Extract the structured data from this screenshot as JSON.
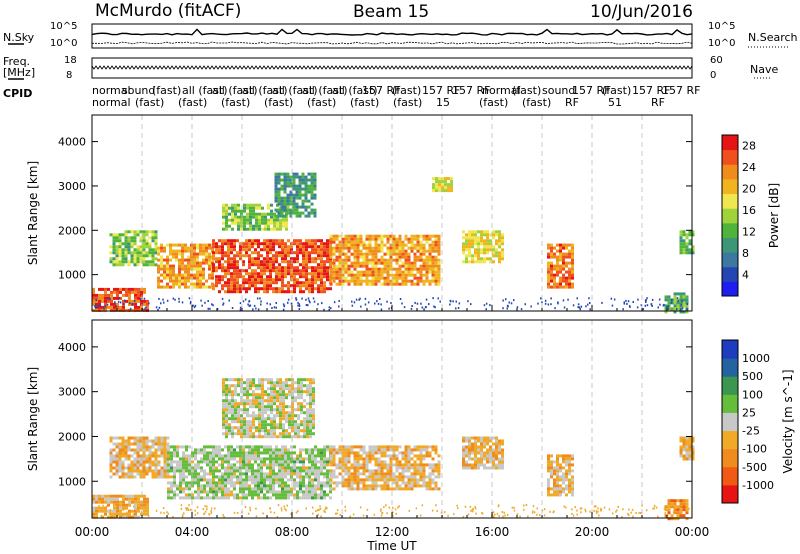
{
  "header": {
    "station": "McMurdo (fitACF)",
    "beam": "Beam 15",
    "date": "10/Jun/2016"
  },
  "left_labels": {
    "nsky": "N.Sky",
    "freq_l1": "Freq.",
    "freq_l2": "[MHz]",
    "cpid": "CPID"
  },
  "right_labels": {
    "nsearch": "N.Search",
    "nave": "Nave"
  },
  "noise_axis": {
    "left_top": "10^5",
    "left_bottom": "10^0",
    "right_top": "10^5",
    "right_bottom": "10^0"
  },
  "freq_axis": {
    "left_top": "18",
    "left_bottom": "8",
    "right_top": "60",
    "right_bottom": "0"
  },
  "cpid_row1": [
    "normal",
    "sound",
    "(fast)",
    "all (fast)",
    "all (fast)",
    "all (fast)",
    "all (fast)",
    "all (fast)",
    "all (fast)",
    "157 RF",
    "(fast)",
    "157 RF",
    "157 RF",
    "normal",
    "(fast)",
    "sound",
    "157 RF",
    "(fast)",
    "157 RF",
    "157 RF"
  ],
  "cpid_row2": [
    "normal",
    "(fast)",
    "(fast)",
    "(fast)",
    "(fast)",
    "(fast)",
    "(fast)",
    "(fast)",
    "15",
    "(fast)",
    "(fast)",
    "RF",
    "51",
    "RF"
  ],
  "chart_data": [
    {
      "type": "heatmap",
      "panel": "power",
      "xlabel": "",
      "ylabel": "Slant Range [km]",
      "xlim": [
        0,
        24
      ],
      "ylim": [
        180,
        4600
      ],
      "yticks": [
        "1000",
        "2000",
        "3000",
        "4000"
      ],
      "colorbar_label": "Power [dB]",
      "colorbar_ticks": [
        "4",
        "8",
        "12",
        "16",
        "20",
        "24",
        "28"
      ],
      "colorbar_range": [
        0,
        30
      ],
      "colors": [
        "#1e1ef0",
        "#2346b4",
        "#3c78a0",
        "#3c9678",
        "#50b43c",
        "#a0d23c",
        "#f0e650",
        "#f0b41e",
        "#f08c1e",
        "#f0501e",
        "#e61414"
      ],
      "regions": [
        {
          "t0": 0.7,
          "t1": 2.6,
          "r0": 1200,
          "r1": 2000,
          "v": 14
        },
        {
          "t0": 2.6,
          "t1": 4.8,
          "r0": 700,
          "r1": 1700,
          "v": 22
        },
        {
          "t0": 4.8,
          "t1": 9.5,
          "r0": 600,
          "r1": 1800,
          "v": 26
        },
        {
          "t0": 9.5,
          "t1": 13.9,
          "r0": 800,
          "r1": 1900,
          "v": 22
        },
        {
          "t0": 5.2,
          "t1": 7.8,
          "r0": 2000,
          "r1": 2600,
          "v": 14
        },
        {
          "t0": 7.3,
          "t1": 8.9,
          "r0": 2300,
          "r1": 3300,
          "v": 10
        },
        {
          "t0": 13.6,
          "t1": 14.4,
          "r0": 2900,
          "r1": 3200,
          "v": 18
        },
        {
          "t0": 14.8,
          "t1": 16.4,
          "r0": 1300,
          "r1": 2000,
          "v": 18
        },
        {
          "t0": 18.2,
          "t1": 19.2,
          "r0": 700,
          "r1": 1700,
          "v": 24
        },
        {
          "t0": 23.5,
          "t1": 24.0,
          "r0": 1500,
          "r1": 2000,
          "v": 12
        },
        {
          "t0": 0.0,
          "t1": 2.2,
          "r0": 180,
          "r1": 700,
          "v": 26
        },
        {
          "t0": 22.9,
          "t1": 23.8,
          "r0": 180,
          "r1": 600,
          "v": 12
        }
      ]
    },
    {
      "type": "heatmap",
      "panel": "velocity",
      "xlabel": "Time UT",
      "ylabel": "Slant Range [km]",
      "xlim": [
        0,
        24
      ],
      "ylim": [
        180,
        4600
      ],
      "yticks": [
        "1000",
        "2000",
        "3000",
        "4000"
      ],
      "xticks": [
        "00:00",
        "04:00",
        "08:00",
        "12:00",
        "16:00",
        "20:00",
        "00:00"
      ],
      "colorbar_label": "Velocity [m s^-1]",
      "colorbar_ticks": [
        "1000",
        "500",
        "100",
        "25",
        "-25",
        "-100",
        "-500",
        "-1000"
      ],
      "colorbar_range": [
        -1200,
        1200
      ],
      "colors": [
        "#e61414",
        "#f05a14",
        "#f08c1e",
        "#f0aa28",
        "#c8c8c8",
        "#64be3c",
        "#3c9650",
        "#2364a0",
        "#1e3cbe"
      ],
      "regions": [
        {
          "t0": 0.7,
          "t1": 3.0,
          "r0": 1100,
          "r1": 2000,
          "v": -200
        },
        {
          "t0": 3.0,
          "t1": 9.5,
          "r0": 600,
          "r1": 1800,
          "v": 120
        },
        {
          "t0": 9.5,
          "t1": 13.9,
          "r0": 800,
          "r1": 1800,
          "v": -220
        },
        {
          "t0": 5.2,
          "t1": 8.9,
          "r0": 2000,
          "r1": 3300,
          "v": 0
        },
        {
          "t0": 14.8,
          "t1": 16.4,
          "r0": 1300,
          "r1": 2000,
          "v": -200
        },
        {
          "t0": 18.2,
          "t1": 19.2,
          "r0": 700,
          "r1": 1600,
          "v": -250
        },
        {
          "t0": 23.5,
          "t1": 24.0,
          "r0": 1500,
          "r1": 2000,
          "v": -200
        },
        {
          "t0": 0.0,
          "t1": 2.2,
          "r0": 180,
          "r1": 700,
          "v": -300
        },
        {
          "t0": 22.9,
          "t1": 23.8,
          "r0": 180,
          "r1": 600,
          "v": -500
        }
      ]
    }
  ]
}
